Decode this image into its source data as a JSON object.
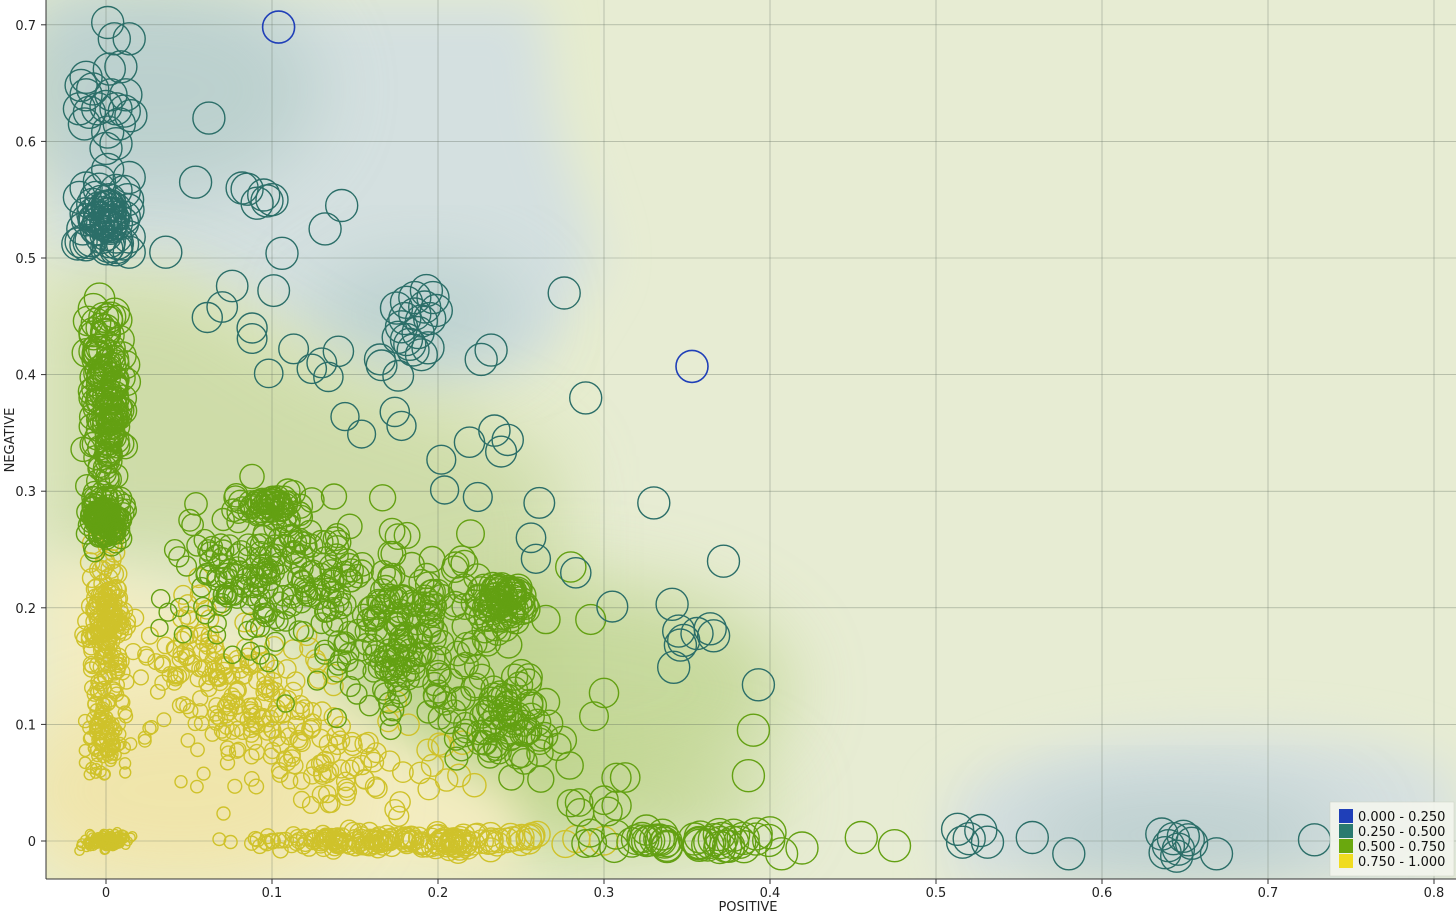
{
  "chart_data": {
    "type": "scatter",
    "xlabel": "POSITIVE",
    "ylabel": "NEGATIVE",
    "xlim": [
      -0.036,
      0.815
    ],
    "ylim": [
      -0.032,
      0.72
    ],
    "x_ticks": [
      "0",
      "0.1",
      "0.2",
      "0.3",
      "0.4",
      "0.5",
      "0.6",
      "0.7",
      "0.8"
    ],
    "y_ticks": [
      "0",
      "0.1",
      "0.2",
      "0.3",
      "0.4",
      "0.5",
      "0.6",
      "0.7"
    ],
    "grid": true,
    "background": "density heatmap of class probability",
    "legend": {
      "placement": "bottom-right",
      "entries": [
        {
          "label": "0.000 - 0.250",
          "color": "#1f3fb8"
        },
        {
          "label": "0.250 - 0.500",
          "color": "#2a7a6f"
        },
        {
          "label": "0.500 - 0.750",
          "color": "#6aa80e"
        },
        {
          "label": "0.750 - 1.000",
          "color": "#f0dc20"
        }
      ]
    },
    "colors": {
      "class_0": "#1f3fb8",
      "class_1": "#2b6e68",
      "class_2": "#63a012",
      "class_3": "#cfc22a"
    },
    "series": [
      {
        "class": 0,
        "points": [
          [
            0.104,
            0.698
          ],
          [
            0.353,
            0.407
          ]
        ]
      },
      {
        "class": 1,
        "points": [
          [
            0.001,
            0.702
          ],
          [
            0.005,
            0.688
          ],
          [
            0.014,
            0.688
          ],
          [
            0.009,
            0.664
          ],
          [
            0.002,
            0.662
          ],
          [
            -0.012,
            0.655
          ],
          [
            -0.015,
            0.648
          ],
          [
            -0.008,
            0.645
          ],
          [
            -0.012,
            0.64
          ],
          [
            0.003,
            0.64
          ],
          [
            0.012,
            0.64
          ],
          [
            -0.016,
            0.628
          ],
          [
            -0.01,
            0.625
          ],
          [
            -0.005,
            0.628
          ],
          [
            0.0,
            0.63
          ],
          [
            0.006,
            0.628
          ],
          [
            0.011,
            0.626
          ],
          [
            0.015,
            0.622
          ],
          [
            -0.013,
            0.615
          ],
          [
            0.008,
            0.615
          ],
          [
            0.001,
            0.608
          ],
          [
            0.006,
            0.598
          ],
          [
            0.0,
            0.594
          ],
          [
            0.001,
            0.576
          ],
          [
            -0.004,
            0.566
          ],
          [
            0.014,
            0.569
          ],
          [
            -0.012,
            0.56
          ],
          [
            -0.004,
            0.559
          ],
          [
            0.006,
            0.558
          ],
          [
            0.011,
            0.557
          ],
          [
            -0.016,
            0.552
          ],
          [
            -0.006,
            0.552
          ],
          [
            0.002,
            0.55
          ],
          [
            0.013,
            0.55
          ],
          [
            -0.008,
            0.546
          ],
          [
            0.001,
            0.544
          ],
          [
            -0.012,
            0.538
          ],
          [
            0.004,
            0.535
          ],
          [
            0.011,
            0.535
          ],
          [
            -0.014,
            0.525
          ],
          [
            -0.006,
            0.525
          ],
          [
            0.0,
            0.52
          ],
          [
            0.006,
            0.518
          ],
          [
            0.014,
            0.518
          ],
          [
            -0.015,
            0.514
          ],
          [
            -0.009,
            0.515
          ],
          [
            0.002,
            0.514
          ],
          [
            0.01,
            0.512
          ],
          [
            -0.017,
            0.512
          ],
          [
            0.006,
            0.507
          ],
          [
            0.014,
            0.505
          ],
          [
            0.062,
            0.62
          ],
          [
            0.054,
            0.565
          ],
          [
            0.085,
            0.559
          ],
          [
            0.082,
            0.56
          ],
          [
            0.095,
            0.554
          ],
          [
            0.097,
            0.549
          ],
          [
            0.1,
            0.55
          ],
          [
            0.091,
            0.547
          ],
          [
            0.142,
            0.545
          ],
          [
            0.132,
            0.525
          ],
          [
            0.106,
            0.504
          ],
          [
            0.036,
            0.505
          ],
          [
            0.076,
            0.476
          ],
          [
            0.101,
            0.472
          ],
          [
            0.061,
            0.449
          ],
          [
            0.07,
            0.458
          ],
          [
            0.088,
            0.44
          ],
          [
            0.088,
            0.431
          ],
          [
            0.113,
            0.422
          ],
          [
            0.14,
            0.42
          ],
          [
            0.13,
            0.41
          ],
          [
            0.124,
            0.405
          ],
          [
            0.134,
            0.398
          ],
          [
            0.098,
            0.401
          ],
          [
            0.165,
            0.413
          ],
          [
            0.166,
            0.408
          ],
          [
            0.174,
            0.368
          ],
          [
            0.178,
            0.356
          ],
          [
            0.154,
            0.349
          ],
          [
            0.144,
            0.364
          ],
          [
            0.176,
            0.399
          ],
          [
            0.193,
            0.472
          ],
          [
            0.186,
            0.466
          ],
          [
            0.197,
            0.466
          ],
          [
            0.181,
            0.462
          ],
          [
            0.192,
            0.458
          ],
          [
            0.199,
            0.455
          ],
          [
            0.186,
            0.452
          ],
          [
            0.195,
            0.448
          ],
          [
            0.18,
            0.448
          ],
          [
            0.19,
            0.446
          ],
          [
            0.175,
            0.457
          ],
          [
            0.178,
            0.441
          ],
          [
            0.188,
            0.436
          ],
          [
            0.181,
            0.43
          ],
          [
            0.176,
            0.432
          ],
          [
            0.183,
            0.426
          ],
          [
            0.185,
            0.421
          ],
          [
            0.194,
            0.423
          ],
          [
            0.19,
            0.417
          ],
          [
            0.226,
            0.413
          ],
          [
            0.232,
            0.421
          ],
          [
            0.276,
            0.47
          ],
          [
            0.289,
            0.38
          ],
          [
            0.219,
            0.342
          ],
          [
            0.234,
            0.352
          ],
          [
            0.242,
            0.344
          ],
          [
            0.238,
            0.334
          ],
          [
            0.202,
            0.327
          ],
          [
            0.204,
            0.301
          ],
          [
            0.224,
            0.295
          ],
          [
            0.261,
            0.29
          ],
          [
            0.33,
            0.29
          ],
          [
            0.256,
            0.26
          ],
          [
            0.259,
            0.242
          ],
          [
            0.372,
            0.24
          ],
          [
            0.283,
            0.23
          ],
          [
            0.305,
            0.201
          ],
          [
            0.341,
            0.203
          ],
          [
            0.345,
            0.18
          ],
          [
            0.364,
            0.182
          ],
          [
            0.348,
            0.172
          ],
          [
            0.356,
            0.178
          ],
          [
            0.366,
            0.176
          ],
          [
            0.346,
            0.168
          ],
          [
            0.342,
            0.149
          ],
          [
            0.393,
            0.134
          ],
          [
            0.513,
            0.01
          ],
          [
            0.516,
            -0.001
          ],
          [
            0.52,
            0.002
          ],
          [
            0.527,
            0.009
          ],
          [
            0.531,
            -0.001
          ],
          [
            0.558,
            0.003
          ],
          [
            0.58,
            -0.011
          ],
          [
            0.636,
            0.006
          ],
          [
            0.64,
            -0.004
          ],
          [
            0.643,
            0.002
          ],
          [
            0.646,
            -0.007
          ],
          [
            0.649,
            0.004
          ],
          [
            0.652,
            0.001
          ],
          [
            0.638,
            -0.01
          ],
          [
            0.645,
            -0.013
          ],
          [
            0.654,
            -0.002
          ],
          [
            0.669,
            -0.011
          ],
          [
            0.728,
            0.001
          ]
        ]
      }
    ]
  }
}
